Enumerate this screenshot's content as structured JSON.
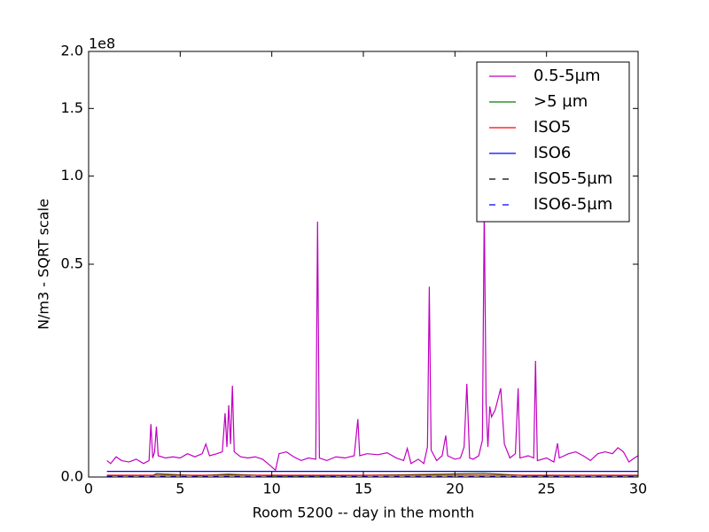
{
  "chart_data": {
    "type": "line",
    "xlabel": "Room 5200 -- day in the month",
    "ylabel": "N/m3 - SQRT scale",
    "y_offset_label": "1e8",
    "yscale": "sqrt",
    "xlim": [
      0,
      30
    ],
    "xticks": [
      0,
      5,
      10,
      15,
      20,
      25,
      30
    ],
    "ylim": [
      0,
      200000000
    ],
    "yticks": [
      {
        "value": 0,
        "label": "0.0"
      },
      {
        "value": 50000000,
        "label": "0.5"
      },
      {
        "value": 100000000,
        "label": "1.0"
      },
      {
        "value": 150000000,
        "label": "1.5"
      },
      {
        "value": 200000000,
        "label": "2.0"
      }
    ],
    "legend": "upper right",
    "series": [
      {
        "name": "0.5-5µm",
        "color": "#bf00bf",
        "linestyle": "solid",
        "x": [
          1.0,
          1.2,
          1.5,
          1.8,
          2.2,
          2.6,
          3.0,
          3.3,
          3.4,
          3.5,
          3.6,
          3.7,
          3.8,
          4.2,
          4.6,
          5.0,
          5.4,
          5.8,
          6.2,
          6.4,
          6.6,
          7.0,
          7.3,
          7.45,
          7.55,
          7.65,
          7.75,
          7.85,
          7.95,
          8.3,
          8.7,
          9.1,
          9.5,
          9.9,
          10.2,
          10.4,
          10.8,
          11.2,
          11.6,
          12.0,
          12.4,
          12.5,
          12.6,
          13.0,
          13.5,
          14.0,
          14.5,
          14.7,
          14.8,
          15.2,
          15.8,
          16.3,
          16.8,
          17.2,
          17.4,
          17.6,
          18.0,
          18.3,
          18.5,
          18.6,
          18.7,
          19.0,
          19.3,
          19.5,
          19.6,
          20.0,
          20.3,
          20.5,
          20.65,
          20.8,
          21.0,
          21.3,
          21.5,
          21.6,
          21.7,
          21.8,
          21.9,
          22.0,
          22.2,
          22.5,
          22.7,
          23.0,
          23.3,
          23.45,
          23.55,
          24.0,
          24.3,
          24.4,
          24.5,
          25.0,
          25.4,
          25.6,
          25.7,
          26.2,
          26.6,
          27.0,
          27.4,
          27.8,
          28.2,
          28.6,
          28.9,
          29.2,
          29.5,
          29.8,
          30.0
        ],
        "values": [
          300000,
          200000,
          450000,
          300000,
          250000,
          350000,
          200000,
          300000,
          3100000,
          400000,
          700000,
          2800000,
          500000,
          400000,
          450000,
          400000,
          600000,
          450000,
          600000,
          1200000,
          500000,
          600000,
          700000,
          4500000,
          1000000,
          5700000,
          1200000,
          9200000,
          700000,
          450000,
          400000,
          450000,
          350000,
          150000,
          50000,
          600000,
          700000,
          450000,
          300000,
          400000,
          350000,
          72000000,
          400000,
          300000,
          450000,
          400000,
          500000,
          3700000,
          500000,
          600000,
          550000,
          650000,
          400000,
          300000,
          900000,
          200000,
          350000,
          200000,
          1000000,
          40000000,
          800000,
          300000,
          500000,
          1900000,
          500000,
          350000,
          400000,
          1000000,
          9600000,
          400000,
          350000,
          500000,
          1500000,
          80000000,
          6000000,
          1000000,
          5500000,
          4000000,
          5000000,
          8700000,
          1200000,
          400000,
          600000,
          8700000,
          400000,
          500000,
          400000,
          14900000,
          300000,
          400000,
          250000,
          1250000,
          400000,
          600000,
          700000,
          500000,
          300000,
          600000,
          700000,
          600000,
          950000,
          700000,
          250000,
          400000,
          500000
        ]
      },
      {
        "name": ">5 µm",
        "color": "#008000",
        "linestyle": "solid",
        "x": [
          1,
          3.5,
          3.7,
          6,
          7.6,
          10,
          13,
          15,
          17.5,
          20.5,
          21.6,
          24,
          27,
          30
        ],
        "values": [
          2000,
          3000,
          12000,
          2000,
          9000,
          1500,
          2000,
          3000,
          6000,
          12000,
          15000,
          2000,
          3000,
          2000
        ]
      },
      {
        "name": "ISO5",
        "color": "#ff0000",
        "linestyle": "solid",
        "x": [
          1,
          30
        ],
        "values": [
          3500,
          3500
        ]
      },
      {
        "name": "ISO6",
        "color": "#0000ff",
        "linestyle": "solid",
        "x": [
          1,
          30
        ],
        "values": [
          35200,
          35200
        ]
      },
      {
        "name": "ISO5-5µm",
        "color": "#000000",
        "linestyle": "dashed",
        "x": [
          1,
          30
        ],
        "values": [
          29,
          29
        ]
      },
      {
        "name": "ISO6-5µm",
        "color": "#0000ff",
        "linestyle": "dashed",
        "x": [
          1,
          30
        ],
        "values": [
          293,
          293
        ]
      }
    ]
  }
}
